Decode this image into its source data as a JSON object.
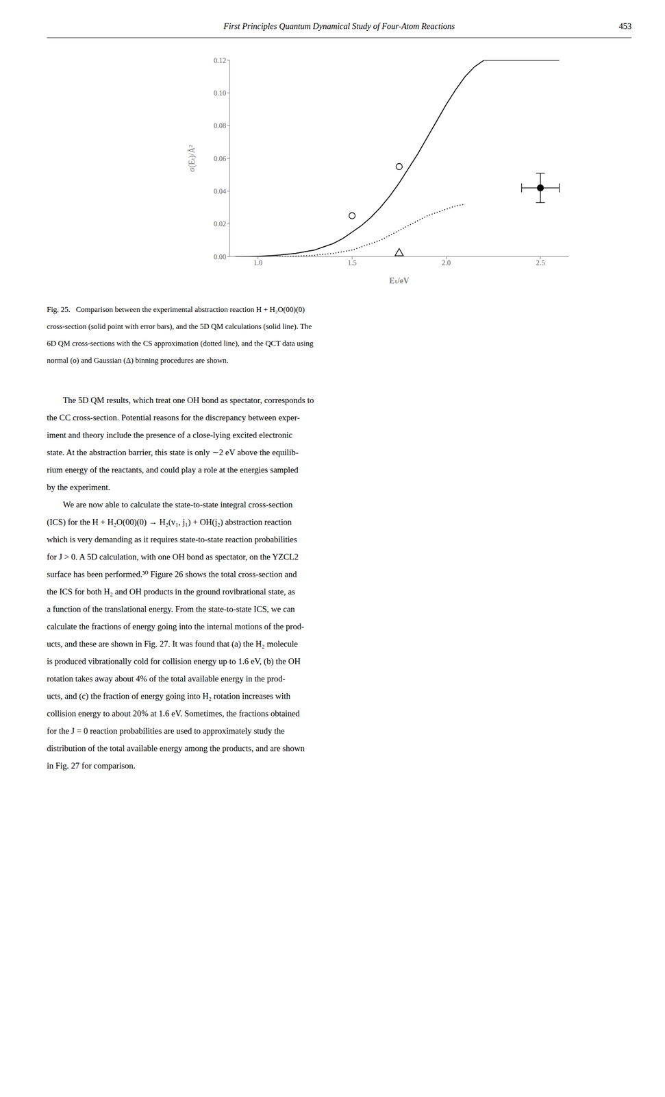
{
  "chart_data": {
    "type": "scatter",
    "title": "First Principles Quantum Dynamical Study of Four-Atom Reactions",
    "xlabel": "Eₜ/eV",
    "ylabel": "σ(Eₜ)/Å²",
    "xlim": [
      0.85,
      2.65
    ],
    "ylim": [
      0.0,
      0.12
    ],
    "xticks": [
      {
        "value": 1.0,
        "label": "1.0"
      },
      {
        "value": 1.5,
        "label": "1.5"
      },
      {
        "value": 2.0,
        "label": "2.0"
      },
      {
        "value": 2.5,
        "label": "2.5"
      }
    ],
    "yticks": [
      {
        "value": 0.0,
        "label": "0.00"
      },
      0.02,
      0.04,
      0.06,
      0.08,
      {
        "value": 0.1,
        "label": "0.10"
      },
      0.12
    ],
    "grid": false,
    "series": [
      {
        "type": "line",
        "line_style": "solid",
        "color": "#000000",
        "x": [
          0.88,
          0.92,
          0.96,
          1.0,
          1.04,
          1.08,
          1.12,
          1.16,
          1.2,
          1.25,
          1.3,
          1.35,
          1.4,
          1.45,
          1.5,
          1.55,
          1.6,
          1.65,
          1.7,
          1.75,
          1.8,
          1.85,
          1.9,
          1.95,
          2.0,
          2.05,
          2.1,
          2.15,
          2.2,
          2.25,
          2.3,
          2.35,
          2.4,
          2.45,
          2.5,
          2.55,
          2.6
        ],
        "values": [
          0.0,
          0.0,
          0.0001,
          0.0002,
          0.0004,
          0.0007,
          0.001,
          0.0015,
          0.002,
          0.003,
          0.004,
          0.006,
          0.008,
          0.011,
          0.015,
          0.019,
          0.024,
          0.03,
          0.037,
          0.045,
          0.054,
          0.063,
          0.073,
          0.083,
          0.093,
          0.102,
          0.11,
          0.116,
          0.12,
          0.12,
          0.12,
          0.12,
          0.12,
          0.12,
          0.12,
          0.12,
          0.12
        ]
      },
      {
        "type": "line",
        "line_style": "dotted",
        "color": "#000000",
        "x": [
          1.1,
          1.2,
          1.3,
          1.4,
          1.5,
          1.55,
          1.6,
          1.65,
          1.7,
          1.75,
          1.8,
          1.85,
          1.9,
          1.95,
          2.0,
          2.05,
          2.1
        ],
        "values": [
          0.0,
          0.0003,
          0.0008,
          0.002,
          0.004,
          0.006,
          0.008,
          0.01,
          0.013,
          0.016,
          0.019,
          0.022,
          0.025,
          0.027,
          0.029,
          0.031,
          0.032
        ]
      },
      {
        "type": "scatter",
        "marker": "circle",
        "color": "#000000",
        "x": [
          1.5,
          1.75
        ],
        "values": [
          0.025,
          0.055
        ]
      },
      {
        "type": "scatter",
        "marker": "triangle",
        "color": "#000000",
        "x": [
          1.75
        ],
        "values": [
          0.002
        ]
      },
      {
        "type": "scatter",
        "marker": "disc",
        "color": "#000000",
        "x": [
          2.5
        ],
        "values": [
          0.042
        ],
        "x_error": [
          0.1
        ],
        "y_error": [
          0.009
        ]
      }
    ],
    "annotations": {
      "page_number": "453",
      "caption": [
        "Fig. 25.   Comparison between the experimental abstraction reaction H + H₂O(00)(0)",
        "cross-section (solid point with error bars), and the 5D QM calculations (solid line). The",
        "6D QM cross-sections with the CS approximation (dotted line), and the QCT data using",
        "normal (o) and Gaussian (Δ) binning procedures are shown."
      ],
      "body": [
        [
          "The 5D QM results, which treat one OH bond as spectator, corresponds to",
          "the CC cross-section. Potential reasons for the discrepancy between exper-",
          "iment and theory include the presence of a close-lying excited electronic",
          "state. At the abstraction barrier, this state is only ∼2 eV above the equilib-",
          "rium energy of the reactants, and could play a role at the energies sampled",
          "by the experiment."
        ],
        [
          "We are now able to calculate the state-to-state integral cross-section",
          "(ICS) for the H + H₂O(00)(0) → H₂(v₁, j₁) + OH(j₂) abstraction reaction",
          "which is very demanding as it requires state-to-state reaction probabilities",
          "for J > 0. A 5D calculation, with one OH bond as spectator, on the YZCL2",
          "surface has been performed.³⁰ Figure 26 shows the total cross-section and",
          "the ICS for both H₂ and OH products in the ground rovibrational state, as",
          "a function of the translational energy. From the state-to-state ICS, we can",
          "calculate the fractions of energy going into the internal motions of the prod-",
          "ucts, and these are shown in Fig. 27. It was found that (a) the H₂ molecule",
          "is produced vibrationally cold for collision energy up to 1.6 eV, (b) the OH",
          "rotation takes away about 4% of the total available energy in the prod-",
          "ucts, and (c) the fraction of energy going into H₂ rotation increases with",
          "collision energy to about 20% at 1.6 eV. Sometimes, the fractions obtained",
          "for the J = 0 reaction probabilities are used to approximately study the",
          "distribution of the total available energy among the products, and are shown",
          "in Fig. 27 for comparison."
        ]
      ]
    }
  }
}
